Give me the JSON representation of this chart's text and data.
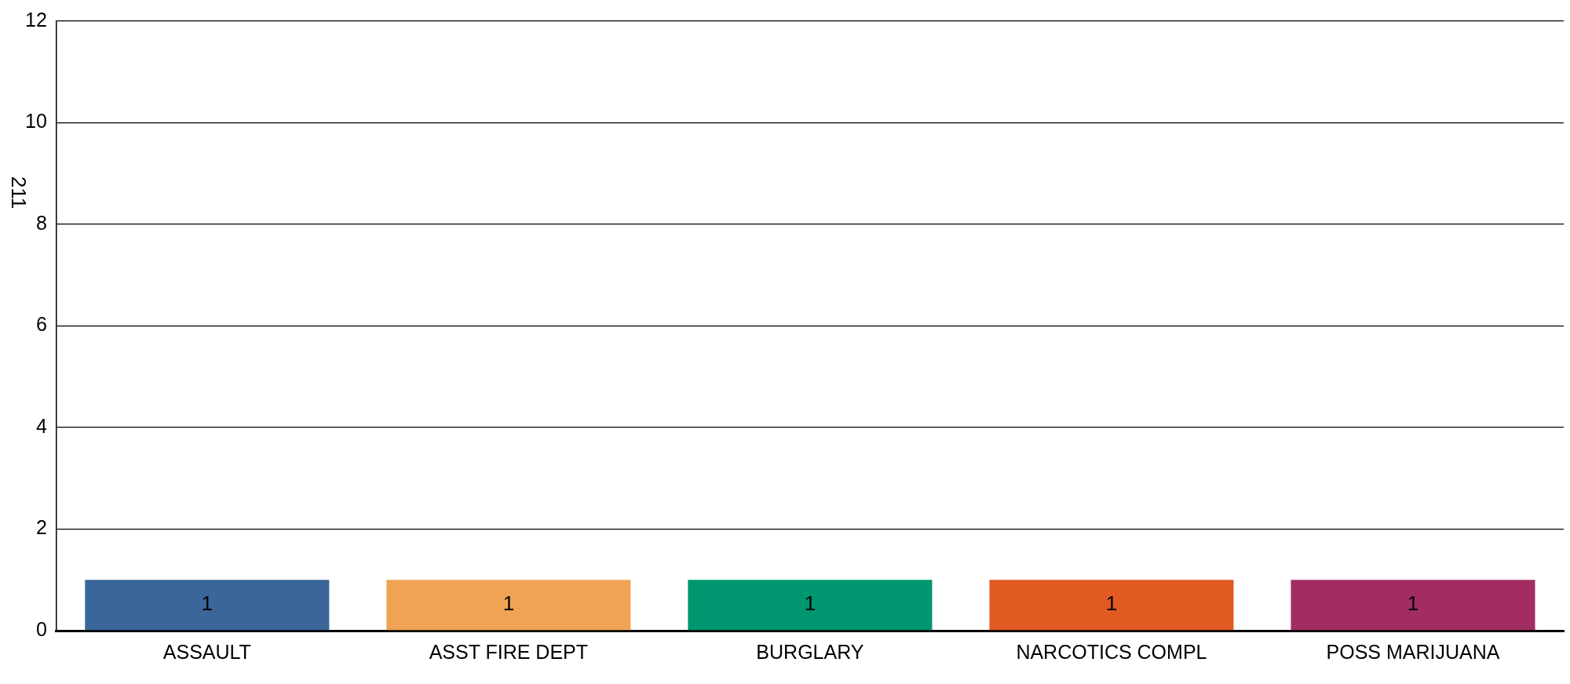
{
  "chart_data": {
    "type": "bar",
    "ylabel": "211",
    "categories": [
      "ASSAULT",
      "ASST FIRE DEPT",
      "BURGLARY",
      "NARCOTICS COMPL",
      "POSS MARIJUANA"
    ],
    "values": [
      1,
      1,
      1,
      1,
      1
    ],
    "colors": [
      "#3a6699",
      "#f0a354",
      "#009670",
      "#e05a22",
      "#a22d62"
    ],
    "ylim": [
      0,
      12
    ],
    "yticks": [
      0,
      2,
      4,
      6,
      8,
      10,
      12
    ],
    "grid": "y",
    "data_labels": true,
    "legend": false
  }
}
